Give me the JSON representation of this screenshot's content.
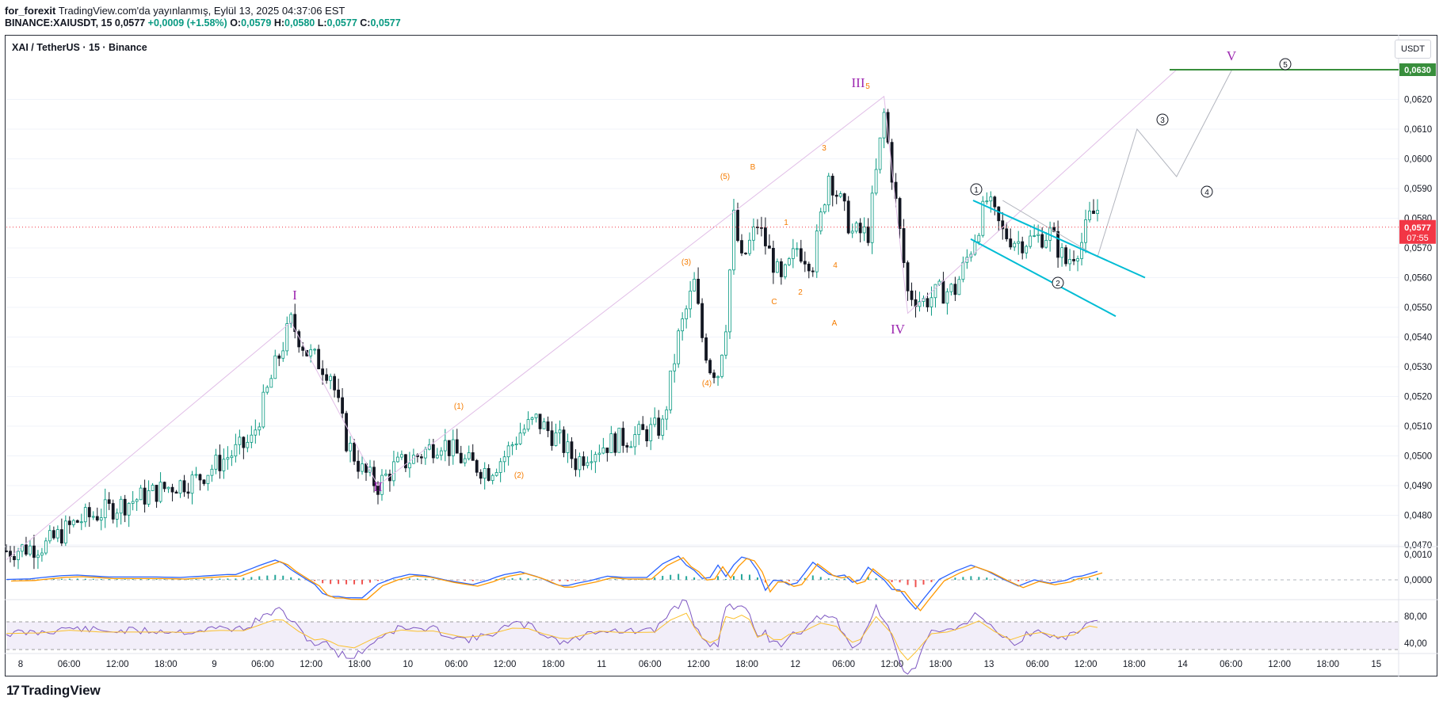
{
  "header": {
    "publisher": "for_forexit",
    "published_line": "TradingView.com'da yayınlanmış, Eylül 13, 2025 04:37:06 EST",
    "symbol_line_prefix": "BINANCE:XAIUSDT, 15",
    "last": "0,0577",
    "change": "+0,0009 (+1.58%)",
    "o_label": "O:",
    "o": "0,0579",
    "h_label": "H:",
    "h": "0,0580",
    "l_label": "L:",
    "l": "0,0577",
    "c_label": "C:",
    "c": "0,0577"
  },
  "legend_title": "XAI / TetherUS · 15 · Binance",
  "currency_button": "USDT",
  "footer_brand": "TradingView",
  "colors": {
    "up": "#089981",
    "down": "#131722",
    "purple": "#9c27b0",
    "orange": "#f57c00",
    "cyan": "#00bcd4",
    "green": "#388e3c",
    "red": "#f23645",
    "macd": "#2962ff",
    "signal": "#ff9800"
  },
  "chart_data": {
    "type": "line",
    "title": "XAI / TetherUS · 15 · Binance",
    "xlabel": "",
    "ylabel": "",
    "ylim": [
      0.0463,
      0.0635
    ],
    "y_ticks": [
      "0,0620",
      "0,0610",
      "0,0600",
      "0,0590",
      "0,0580",
      "0,0570",
      "0,0560",
      "0,0550",
      "0,0540",
      "0,0530",
      "0,0520",
      "0,0510",
      "0,0500",
      "0,0490",
      "0,0480",
      "0,0470"
    ],
    "x_ticks": [
      "8",
      "06:00",
      "12:00",
      "18:00",
      "9",
      "06:00",
      "12:00",
      "18:00",
      "10",
      "06:00",
      "12:00",
      "18:00",
      "11",
      "06:00",
      "12:00",
      "18:00",
      "12",
      "06:00",
      "12:00",
      "18:00",
      "13",
      "06:00",
      "12:00",
      "18:00",
      "14",
      "06:00",
      "12:00",
      "18:00",
      "15"
    ],
    "price_path": [
      [
        0,
        0.0468
      ],
      [
        5,
        0.047
      ],
      [
        9,
        0.0478
      ],
      [
        13,
        0.0482
      ],
      [
        17,
        0.0486
      ],
      [
        21,
        0.049
      ],
      [
        24,
        0.0492
      ],
      [
        27,
        0.0498
      ],
      [
        31,
        0.0505
      ],
      [
        34,
        0.053
      ],
      [
        36,
        0.0545
      ],
      [
        38,
        0.0535
      ],
      [
        41,
        0.0528
      ],
      [
        43,
        0.0505
      ],
      [
        45,
        0.0495
      ],
      [
        47,
        0.049
      ],
      [
        49,
        0.0496
      ],
      [
        52,
        0.05
      ],
      [
        55,
        0.0505
      ],
      [
        58,
        0.0498
      ],
      [
        61,
        0.0495
      ],
      [
        63,
        0.05
      ],
      [
        65,
        0.0508
      ],
      [
        67,
        0.0512
      ],
      [
        70,
        0.0505
      ],
      [
        72,
        0.0498
      ],
      [
        74,
        0.0502
      ],
      [
        77,
        0.0505
      ],
      [
        80,
        0.0507
      ],
      [
        83,
        0.051
      ],
      [
        85,
        0.054
      ],
      [
        87,
        0.0558
      ],
      [
        88,
        0.054
      ],
      [
        89,
        0.053
      ],
      [
        90,
        0.0528
      ],
      [
        91,
        0.0545
      ],
      [
        92,
        0.058
      ],
      [
        93,
        0.0565
      ],
      [
        95,
        0.0578
      ],
      [
        97,
        0.0565
      ],
      [
        98,
        0.0558
      ],
      [
        100,
        0.057
      ],
      [
        102,
        0.0565
      ],
      [
        104,
        0.0595
      ],
      [
        106,
        0.0582
      ],
      [
        107,
        0.0575
      ],
      [
        109,
        0.0575
      ],
      [
        111,
        0.0615
      ],
      [
        112,
        0.0595
      ],
      [
        114,
        0.0555
      ],
      [
        116,
        0.0552
      ],
      [
        118,
        0.0555
      ],
      [
        120,
        0.0556
      ],
      [
        122,
        0.057
      ],
      [
        124,
        0.0586
      ],
      [
        126,
        0.0575
      ],
      [
        128,
        0.0572
      ],
      [
        130,
        0.0573
      ],
      [
        132,
        0.0575
      ],
      [
        134,
        0.0565
      ],
      [
        136,
        0.0572
      ],
      [
        137,
        0.058
      ],
      [
        138,
        0.0583
      ]
    ],
    "series": [
      {
        "values": [
          0.0545,
          0.049,
          0.0621,
          0.0548,
          0.063
        ]
      },
      {
        "values": [
          0.0586,
          0.0567,
          0.061,
          0.0594,
          0.063
        ]
      }
    ],
    "last_price": "0,0577",
    "countdown": "07:55",
    "target_price": "0,0630",
    "wave_labels_major": [
      "I",
      "II",
      "III",
      "IV",
      "V"
    ],
    "wave_labels_minor": [
      "(1)",
      "(2)",
      "(3)",
      "(4)",
      "(5)",
      "A",
      "B",
      "C",
      "1",
      "2",
      "3",
      "4",
      "5"
    ],
    "projection_labels": [
      "1",
      "2",
      "3",
      "4",
      "5"
    ],
    "macd_ticks": [
      "0,0010",
      "0,0000"
    ],
    "rsi_ticks": [
      "80,00",
      "40,00"
    ]
  }
}
